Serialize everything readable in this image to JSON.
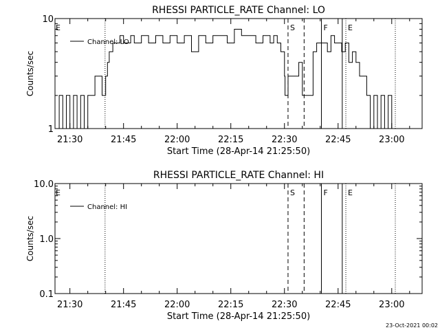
{
  "footer": {
    "timestamp": "23-Oct-2021 00:02"
  },
  "chart_data": [
    {
      "type": "line",
      "title": "RHESSI PARTICLE_RATE Channel: LO",
      "xlabel": "Start Time (28-Apr-14 21:25:50)",
      "ylabel": "Counts/sec",
      "y_scale": "log",
      "ylim": [
        1,
        10
      ],
      "y_ticks": [
        {
          "v": 1,
          "label": "1"
        },
        {
          "v": 10,
          "label": "10"
        }
      ],
      "xlim": [
        "21:25:50",
        "23:08:30"
      ],
      "x_ticks": [
        "21:30",
        "21:45",
        "22:00",
        "22:15",
        "22:30",
        "22:45",
        "23:00"
      ],
      "legend": "top-left",
      "series": [
        {
          "name": "Channel: LO",
          "x": [
            "21:25:50",
            "21:27:00",
            "21:28:00",
            "21:29:00",
            "21:30:00",
            "21:31:00",
            "21:32:00",
            "21:33:00",
            "21:34:00",
            "21:35:00",
            "21:36:00",
            "21:37:00",
            "21:38:00",
            "21:39:00",
            "21:40:00",
            "21:40:30",
            "21:41:00",
            "21:42:00",
            "21:43:00",
            "21:44:00",
            "21:45:00",
            "21:47:00",
            "21:48:00",
            "21:50:00",
            "21:52:00",
            "21:54:00",
            "21:56:00",
            "21:58:00",
            "22:00:00",
            "22:02:00",
            "22:04:00",
            "22:06:00",
            "22:08:00",
            "22:10:00",
            "22:12:00",
            "22:14:00",
            "22:16:00",
            "22:18:00",
            "22:20:00",
            "22:22:00",
            "22:24:00",
            "22:26:00",
            "22:27:00",
            "22:28:00",
            "22:29:00",
            "22:30:00",
            "22:30:10",
            "22:31:00",
            "22:32:00",
            "22:33:00",
            "22:34:00",
            "22:35:00",
            "22:36:00",
            "22:37:00",
            "22:38:00",
            "22:39:00",
            "22:40:00",
            "22:41:00",
            "22:42:00",
            "22:43:00",
            "22:44:00",
            "22:45:00",
            "22:46:00",
            "22:47:00",
            "22:48:00",
            "22:49:00",
            "22:50:00",
            "22:51:00",
            "22:52:00",
            "22:53:00",
            "22:54:00",
            "22:55:00",
            "22:56:00",
            "22:57:00",
            "22:58:00",
            "22:59:00",
            "23:00:00",
            "23:01:00"
          ],
          "values": [
            1.0,
            2.0,
            1.0,
            2.0,
            1.0,
            2.0,
            1.0,
            2.0,
            1.0,
            2.0,
            2.0,
            3.0,
            3.0,
            2.0,
            3.0,
            4.0,
            5.0,
            6.0,
            6.0,
            7.0,
            6.0,
            7.0,
            6.0,
            7.0,
            6.0,
            7.0,
            6.0,
            7.0,
            6.0,
            7.0,
            5.0,
            7.0,
            6.0,
            7.0,
            7.0,
            6.0,
            8.0,
            7.0,
            7.0,
            6.0,
            7.0,
            6.0,
            7.0,
            6.0,
            5.0,
            3.0,
            2.0,
            3.0,
            3.0,
            3.0,
            4.0,
            2.0,
            2.0,
            2.0,
            5.0,
            6.0,
            6.0,
            6.0,
            5.0,
            7.0,
            6.0,
            6.0,
            5.0,
            6.0,
            4.0,
            5.0,
            4.0,
            3.0,
            3.0,
            2.0,
            1.0,
            2.0,
            1.0,
            2.0,
            1.0,
            2.0,
            1.0,
            1.0
          ]
        }
      ],
      "markers": [
        {
          "x": "21:39:50",
          "style": "dotted",
          "label": ""
        },
        {
          "x": "22:31:00",
          "style": "dashed",
          "label": "S"
        },
        {
          "x": "22:35:30",
          "style": "dashed",
          "label": ""
        },
        {
          "x": "22:40:20",
          "style": "solid",
          "label": "F"
        },
        {
          "x": "22:46:10",
          "style": "solid",
          "label": ""
        },
        {
          "x": "22:47:10",
          "style": "dotted",
          "label": "E"
        },
        {
          "x": "23:01:00",
          "style": "dotted",
          "label": ""
        }
      ],
      "edge_labels": [
        {
          "x": "21:25:50",
          "label": "E"
        }
      ]
    },
    {
      "type": "line",
      "title": "RHESSI PARTICLE_RATE Channel: HI",
      "xlabel": "Start Time (28-Apr-14 21:25:50)",
      "ylabel": "Counts/sec",
      "y_scale": "log",
      "ylim": [
        0.1,
        10
      ],
      "y_ticks": [
        {
          "v": 0.1,
          "label": "0.1"
        },
        {
          "v": 1,
          "label": "1.0"
        },
        {
          "v": 10,
          "label": "10.0"
        }
      ],
      "xlim": [
        "21:25:50",
        "23:08:30"
      ],
      "x_ticks": [
        "21:30",
        "21:45",
        "22:00",
        "22:15",
        "22:30",
        "22:45",
        "23:00"
      ],
      "legend": "top-left",
      "series": [
        {
          "name": "Channel: HI",
          "x": [],
          "values": []
        }
      ],
      "markers": [
        {
          "x": "21:39:50",
          "style": "dotted",
          "label": ""
        },
        {
          "x": "22:31:00",
          "style": "dashed",
          "label": "S"
        },
        {
          "x": "22:35:30",
          "style": "dashed",
          "label": ""
        },
        {
          "x": "22:40:20",
          "style": "solid",
          "label": "F"
        },
        {
          "x": "22:46:10",
          "style": "solid",
          "label": ""
        },
        {
          "x": "22:47:10",
          "style": "dotted",
          "label": "E"
        },
        {
          "x": "23:01:00",
          "style": "dotted",
          "label": ""
        }
      ],
      "edge_labels": [
        {
          "x": "21:25:50",
          "label": "E"
        }
      ]
    }
  ]
}
